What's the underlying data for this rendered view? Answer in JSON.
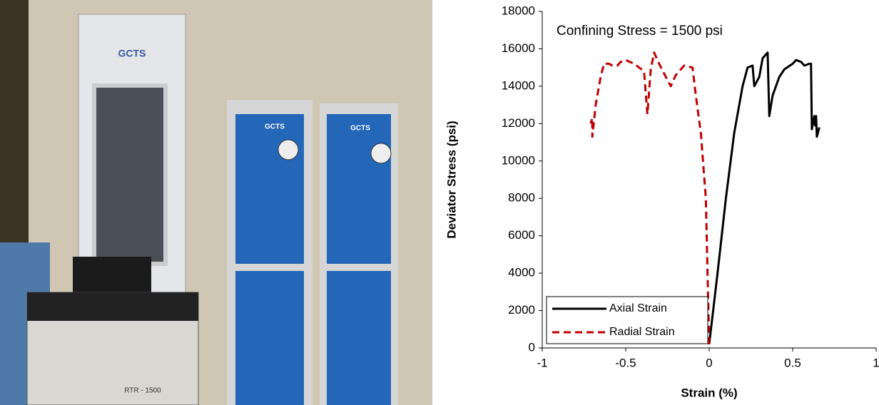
{
  "photo": {
    "texts": [
      "GCTS",
      "GCTS",
      "GCTS",
      "RTR - 1500"
    ]
  },
  "chart_data": {
    "type": "line",
    "annotation": "Confining Stress = 1500 psi",
    "x_label": "Strain (%)",
    "y_label": "Deviator Stress (psi)",
    "xlim": [
      -1,
      1
    ],
    "xticks": [
      -1,
      -0.5,
      0,
      0.5,
      1
    ],
    "ylim": [
      0,
      18000
    ],
    "yticks": [
      0,
      2000,
      4000,
      6000,
      8000,
      10000,
      12000,
      14000,
      16000,
      18000
    ],
    "grid": false,
    "legend": "lower-left",
    "series": [
      {
        "name": "Axial Strain",
        "color": "#000000",
        "dash": false,
        "x": [
          0,
          0.05,
          0.1,
          0.15,
          0.2,
          0.23,
          0.26,
          0.27,
          0.3,
          0.32,
          0.35,
          0.36,
          0.38,
          0.42,
          0.45,
          0.5,
          0.52,
          0.55,
          0.57,
          0.6,
          0.61,
          0.615,
          0.63,
          0.635,
          0.64,
          0.645,
          0.66
        ],
        "values": [
          200,
          4000,
          8000,
          11500,
          14000,
          15000,
          15100,
          14000,
          14500,
          15500,
          15800,
          12400,
          13500,
          14500,
          14900,
          15200,
          15400,
          15300,
          15100,
          15200,
          15200,
          11700,
          12400,
          11900,
          12400,
          11300,
          11800
        ]
      },
      {
        "name": "Radial Strain",
        "color": "#c00000",
        "dash": true,
        "x": [
          0,
          -0.01,
          -0.02,
          -0.05,
          -0.08,
          -0.1,
          -0.15,
          -0.2,
          -0.23,
          -0.26,
          -0.3,
          -0.33,
          -0.35,
          -0.37,
          -0.39,
          -0.45,
          -0.5,
          -0.53,
          -0.55,
          -0.58,
          -0.6,
          -0.63,
          -0.65,
          -0.68,
          -0.7,
          -0.7,
          -0.71
        ],
        "values": [
          200,
          4000,
          8000,
          11500,
          13500,
          15000,
          15100,
          14600,
          14000,
          14500,
          15200,
          15800,
          14900,
          12500,
          14800,
          15200,
          15400,
          15300,
          15100,
          15100,
          15200,
          15200,
          14500,
          13000,
          11300,
          12300,
          12000
        ]
      }
    ]
  }
}
